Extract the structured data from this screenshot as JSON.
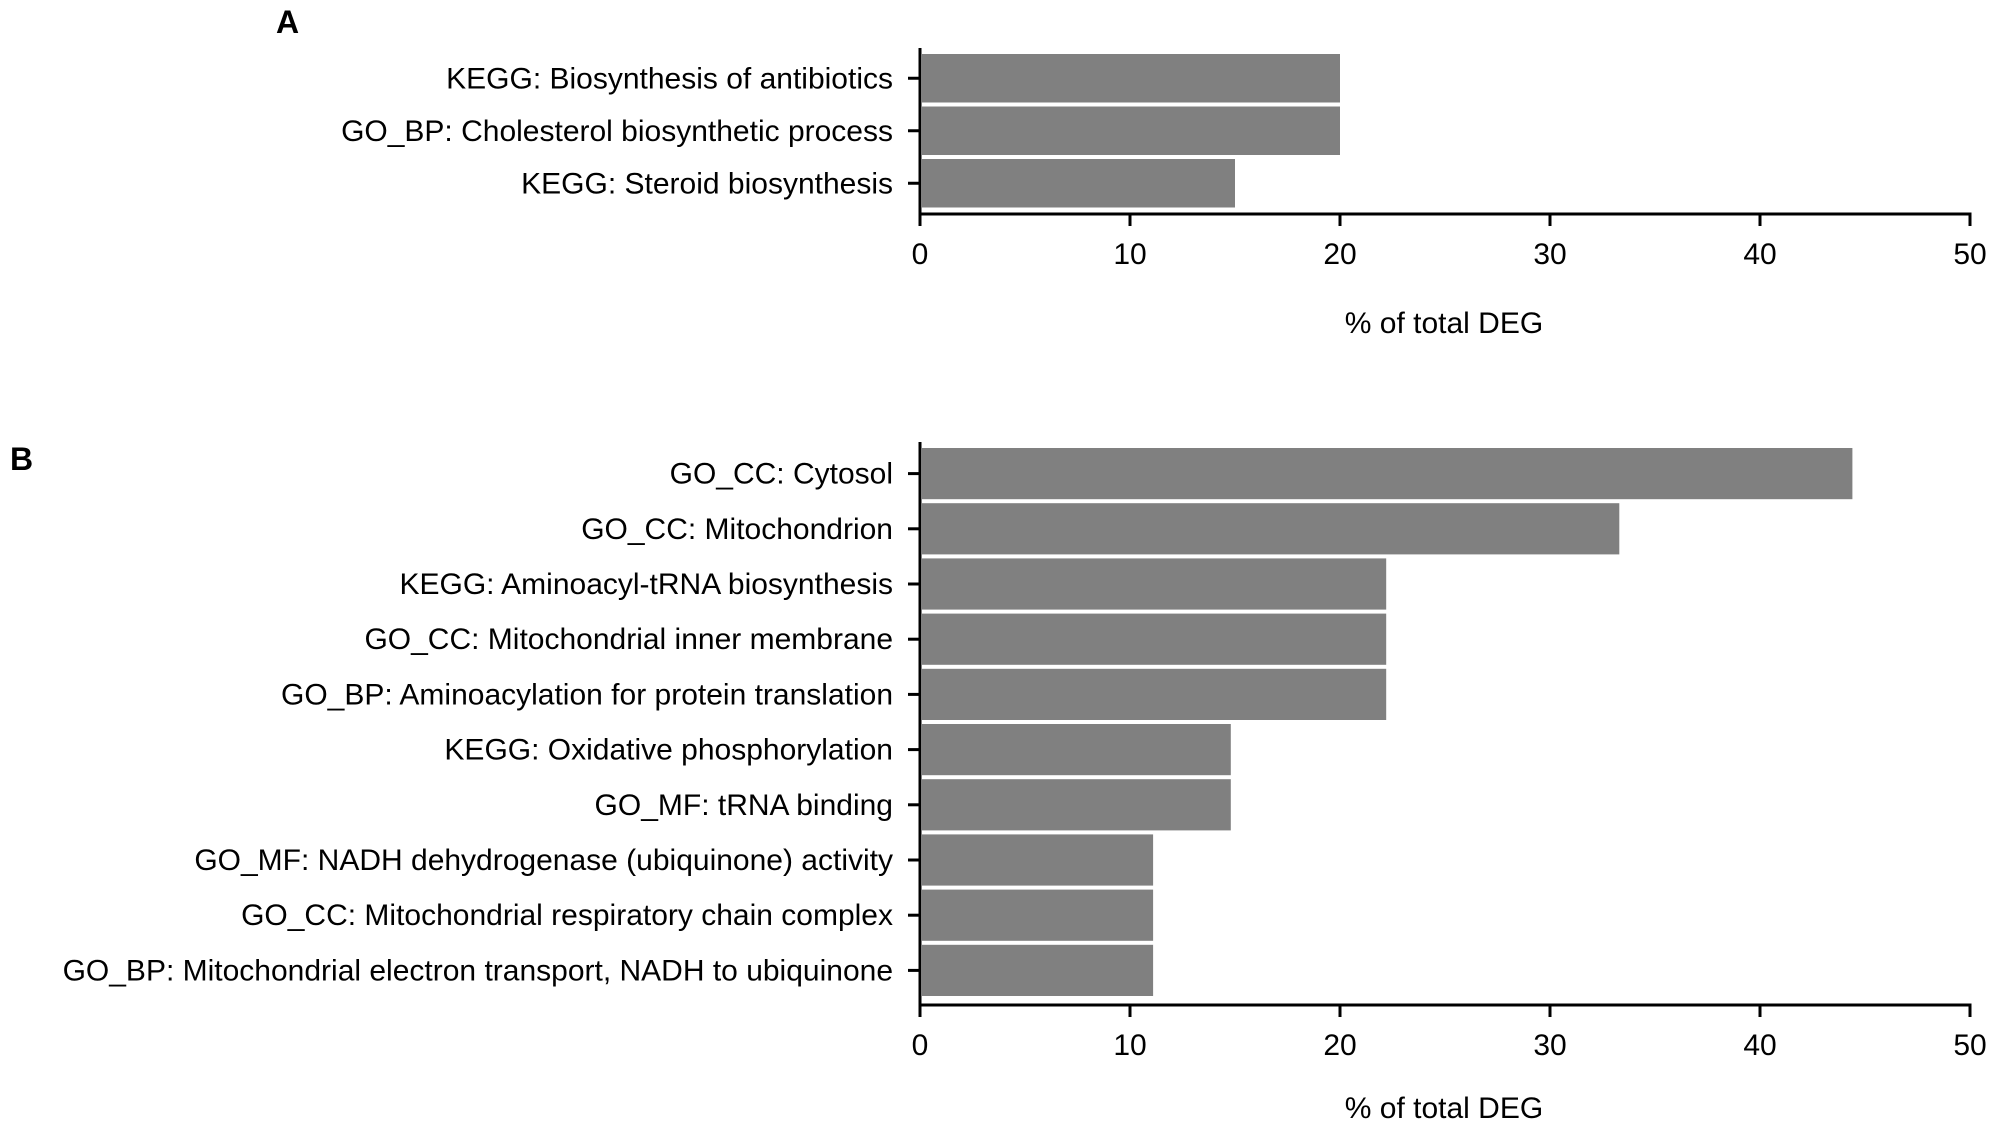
{
  "chart_data": [
    {
      "type": "bar",
      "orientation": "horizontal",
      "panel": "A",
      "categories": [
        "KEGG: Biosynthesis of antibiotics",
        "GO_BP: Cholesterol biosynthetic process",
        "KEGG: Steroid biosynthesis"
      ],
      "values": [
        20,
        20,
        15
      ],
      "xlabel": "% of total DEG",
      "xlim": [
        0,
        50
      ],
      "xticks": [
        0,
        10,
        20,
        30,
        40,
        50
      ],
      "bar_color": "#808080"
    },
    {
      "type": "bar",
      "orientation": "horizontal",
      "panel": "B",
      "categories": [
        "GO_CC: Cytosol",
        "GO_CC: Mitochondrion",
        "KEGG: Aminoacyl-tRNA biosynthesis",
        "GO_CC: Mitochondrial inner membrane",
        "GO_BP: Aminoacylation for protein translation",
        "KEGG: Oxidative phosphorylation",
        "GO_MF: tRNA binding",
        "GO_MF: NADH dehydrogenase (ubiquinone) activity",
        "GO_CC: Mitochondrial respiratory chain complex",
        "GO_BP: Mitochondrial electron transport, NADH to ubiquinone"
      ],
      "values": [
        44.4,
        33.3,
        22.2,
        22.2,
        22.2,
        14.8,
        14.8,
        11.1,
        11.1,
        11.1
      ],
      "xlabel": "% of total DEG",
      "xlim": [
        0,
        50
      ],
      "xticks": [
        0,
        10,
        20,
        30,
        40,
        50
      ],
      "bar_color": "#808080"
    }
  ]
}
